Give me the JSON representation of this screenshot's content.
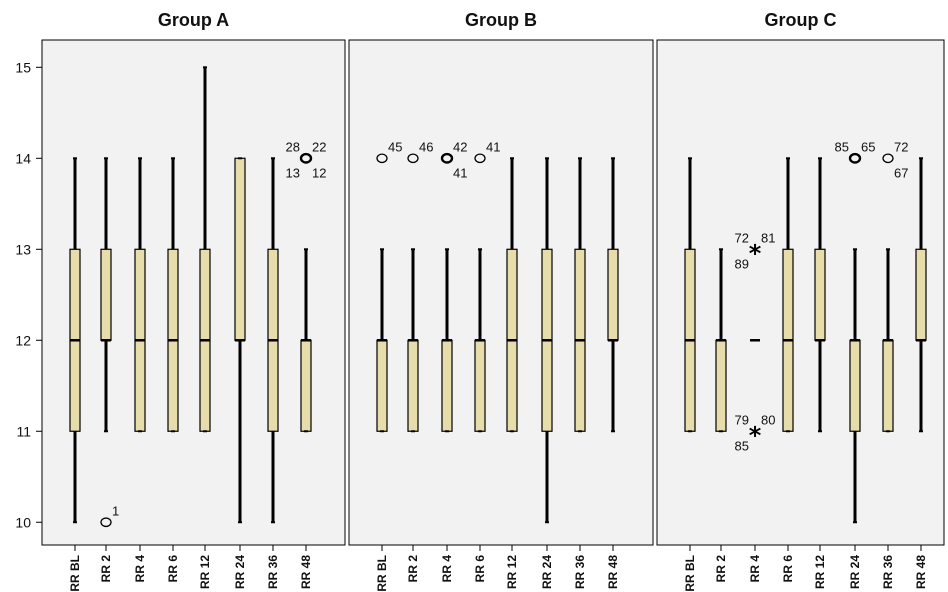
{
  "chart_data": {
    "type": "boxplot",
    "ylim": [
      9.75,
      15.3
    ],
    "yticks": [
      "10",
      "11",
      "12",
      "13",
      "14",
      "15"
    ],
    "categories": [
      "RR BL",
      "RR 2",
      "RR 4",
      "RR 6",
      "RR 12",
      "RR 24",
      "RR 36",
      "RR 48"
    ],
    "colors": {
      "box_fill": "#e6ddaa",
      "box_stroke": "#000000",
      "panel_bg": "#f2f2f2"
    },
    "panels": [
      {
        "title": "Group A",
        "boxes": [
          {
            "cat": "RR BL",
            "min": 10,
            "q1": 11,
            "median": 12,
            "q3": 13,
            "max": 14
          },
          {
            "cat": "RR 2",
            "min": 11,
            "q1": 12,
            "median": 12,
            "q3": 13,
            "max": 14
          },
          {
            "cat": "RR 4",
            "min": 11,
            "q1": 11,
            "median": 12,
            "q3": 13,
            "max": 14
          },
          {
            "cat": "RR 6",
            "min": 11,
            "q1": 11,
            "median": 12,
            "q3": 13,
            "max": 14
          },
          {
            "cat": "RR 12",
            "min": 11,
            "q1": 11,
            "median": 12,
            "q3": 13,
            "max": 15
          },
          {
            "cat": "RR 24",
            "min": 10,
            "q1": 12,
            "median": 12,
            "q3": 14,
            "max": 14
          },
          {
            "cat": "RR 36",
            "min": 10,
            "q1": 11,
            "median": 12,
            "q3": 13,
            "max": 14
          },
          {
            "cat": "RR 48",
            "min": 11,
            "q1": 11,
            "median": 12,
            "q3": 12,
            "max": 13
          }
        ],
        "outliers": [
          {
            "cat": "RR 2",
            "value": 10,
            "marker": "circle",
            "labels": [
              {
                "text": "1",
                "pos": "ur"
              }
            ]
          },
          {
            "cat": "RR 48",
            "value": 14,
            "marker": "circle-bold",
            "labels": [
              {
                "text": "28",
                "pos": "ul"
              },
              {
                "text": "22",
                "pos": "ur"
              },
              {
                "text": "13",
                "pos": "ll"
              },
              {
                "text": "12",
                "pos": "lr"
              }
            ]
          }
        ]
      },
      {
        "title": "Group B",
        "boxes": [
          {
            "cat": "RR BL",
            "min": 11,
            "q1": 11,
            "median": 12,
            "q3": 12,
            "max": 13
          },
          {
            "cat": "RR 2",
            "min": 11,
            "q1": 11,
            "median": 12,
            "q3": 12,
            "max": 13
          },
          {
            "cat": "RR 4",
            "min": 11,
            "q1": 11,
            "median": 12,
            "q3": 12,
            "max": 13
          },
          {
            "cat": "RR 6",
            "min": 11,
            "q1": 11,
            "median": 12,
            "q3": 12,
            "max": 13
          },
          {
            "cat": "RR 12",
            "min": 11,
            "q1": 11,
            "median": 12,
            "q3": 13,
            "max": 14
          },
          {
            "cat": "RR 24",
            "min": 10,
            "q1": 11,
            "median": 12,
            "q3": 13,
            "max": 14
          },
          {
            "cat": "RR 36",
            "min": 11,
            "q1": 11,
            "median": 12,
            "q3": 13,
            "max": 14
          },
          {
            "cat": "RR 48",
            "min": 11,
            "q1": 12,
            "median": 12,
            "q3": 13,
            "max": 14
          }
        ],
        "outliers": [
          {
            "cat": "RR BL",
            "value": 14,
            "marker": "circle",
            "labels": [
              {
                "text": "45",
                "pos": "ur"
              }
            ]
          },
          {
            "cat": "RR 2",
            "value": 14,
            "marker": "circle",
            "labels": [
              {
                "text": "46",
                "pos": "ur"
              }
            ]
          },
          {
            "cat": "RR 4",
            "value": 14,
            "marker": "circle-bold",
            "labels": [
              {
                "text": "42",
                "pos": "ur"
              },
              {
                "text": "41",
                "pos": "lr"
              }
            ]
          },
          {
            "cat": "RR 6",
            "value": 14,
            "marker": "circle",
            "labels": [
              {
                "text": "41",
                "pos": "ur"
              }
            ]
          }
        ]
      },
      {
        "title": "Group C",
        "boxes": [
          {
            "cat": "RR BL",
            "min": 11,
            "q1": 11,
            "median": 12,
            "q3": 13,
            "max": 14
          },
          {
            "cat": "RR 2",
            "min": 11,
            "q1": 11,
            "median": 12,
            "q3": 12,
            "max": 13
          },
          {
            "cat": "RR 4",
            "min": 12,
            "q1": 12,
            "median": 12,
            "q3": 12,
            "max": 12
          },
          {
            "cat": "RR 6",
            "min": 11,
            "q1": 11,
            "median": 12,
            "q3": 13,
            "max": 14
          },
          {
            "cat": "RR 12",
            "min": 11,
            "q1": 12,
            "median": 12,
            "q3": 13,
            "max": 14
          },
          {
            "cat": "RR 24",
            "min": 10,
            "q1": 11,
            "median": 12,
            "q3": 12,
            "max": 13
          },
          {
            "cat": "RR 36",
            "min": 11,
            "q1": 11,
            "median": 12,
            "q3": 12,
            "max": 13
          },
          {
            "cat": "RR 48",
            "min": 11,
            "q1": 12,
            "median": 12,
            "q3": 13,
            "max": 14
          }
        ],
        "outliers": [
          {
            "cat": "RR 4",
            "value": 13,
            "marker": "star",
            "labels": [
              {
                "text": "72",
                "pos": "ul"
              },
              {
                "text": "81",
                "pos": "ur"
              },
              {
                "text": "89",
                "pos": "ll"
              }
            ]
          },
          {
            "cat": "RR 4",
            "value": 11,
            "marker": "star",
            "labels": [
              {
                "text": "79",
                "pos": "ul"
              },
              {
                "text": "80",
                "pos": "ur"
              },
              {
                "text": "85",
                "pos": "ll"
              }
            ]
          },
          {
            "cat": "RR 24",
            "value": 14,
            "marker": "circle-bold",
            "labels": [
              {
                "text": "85",
                "pos": "ul"
              },
              {
                "text": "65",
                "pos": "ur"
              }
            ]
          },
          {
            "cat": "RR 36",
            "value": 14,
            "marker": "circle",
            "labels": [
              {
                "text": "72",
                "pos": "ur"
              },
              {
                "text": "67",
                "pos": "lr"
              }
            ]
          }
        ]
      }
    ]
  }
}
